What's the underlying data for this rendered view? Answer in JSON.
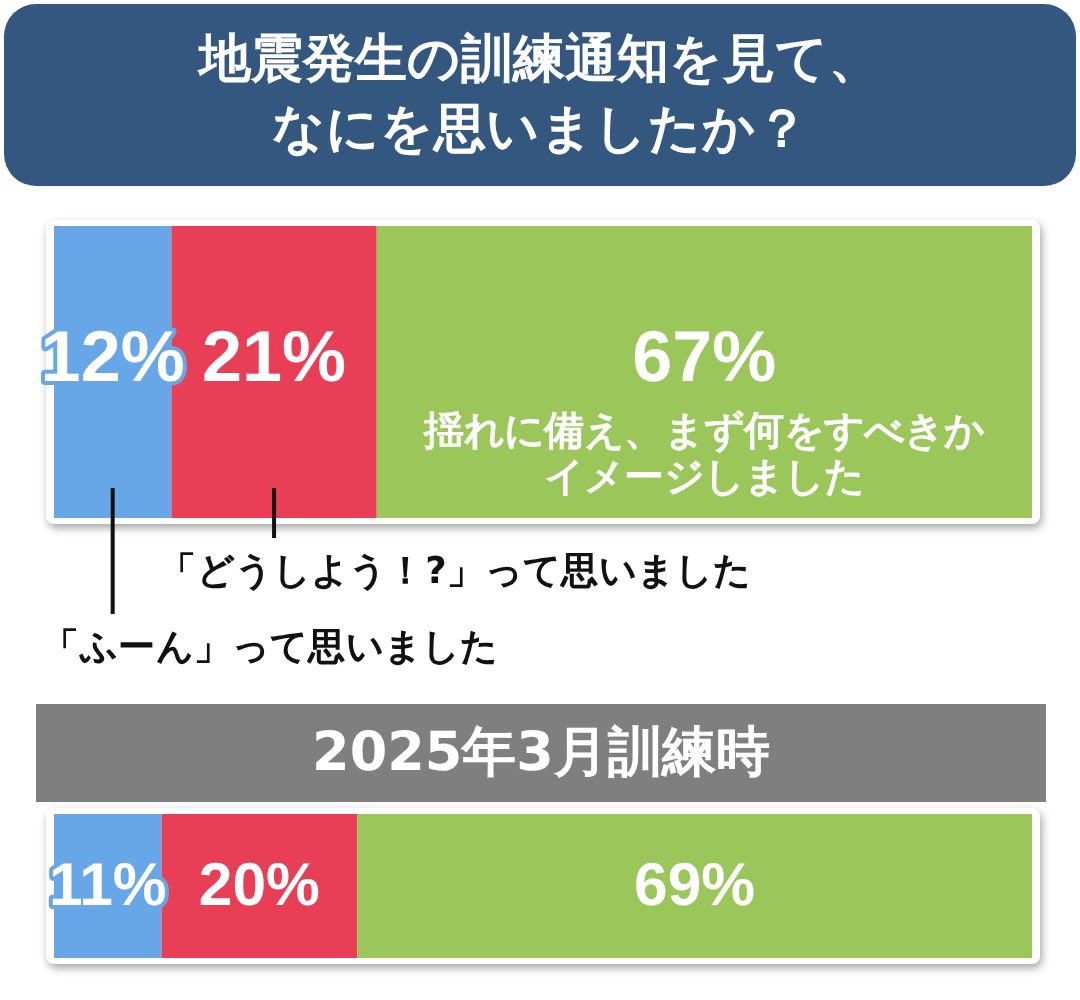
{
  "chart_data": [
    {
      "type": "bar",
      "orientation": "horizontal",
      "stacked": true,
      "title": "地震発生の訓練通知を見て、なにを思いましたか？",
      "categories": [
        null
      ],
      "xlim": [
        0,
        100
      ],
      "series": [
        {
          "name": "「ふーん」って思いました",
          "color": "#68a7e7",
          "values": [
            12
          ],
          "value_labels": [
            "12%"
          ]
        },
        {
          "name": "「どうしよう！?」って思いました",
          "color": "#e83e56",
          "values": [
            21
          ],
          "value_labels": [
            "21%"
          ]
        },
        {
          "name": "揺れに備え、まず何をすべきかイメージしました",
          "color": "#9bc65a",
          "values": [
            67
          ],
          "value_labels": [
            "67%"
          ]
        }
      ]
    },
    {
      "type": "bar",
      "orientation": "horizontal",
      "stacked": true,
      "title": "2025年3月訓練時",
      "categories": [
        null
      ],
      "xlim": [
        0,
        100
      ],
      "series": [
        {
          "color": "#68a7e7",
          "values": [
            11
          ],
          "value_labels": [
            "11%"
          ]
        },
        {
          "color": "#e83e56",
          "values": [
            20
          ],
          "value_labels": [
            "20%"
          ]
        },
        {
          "color": "#9bc65a",
          "values": [
            69
          ],
          "value_labels": [
            "69%"
          ]
        }
      ]
    }
  ]
}
